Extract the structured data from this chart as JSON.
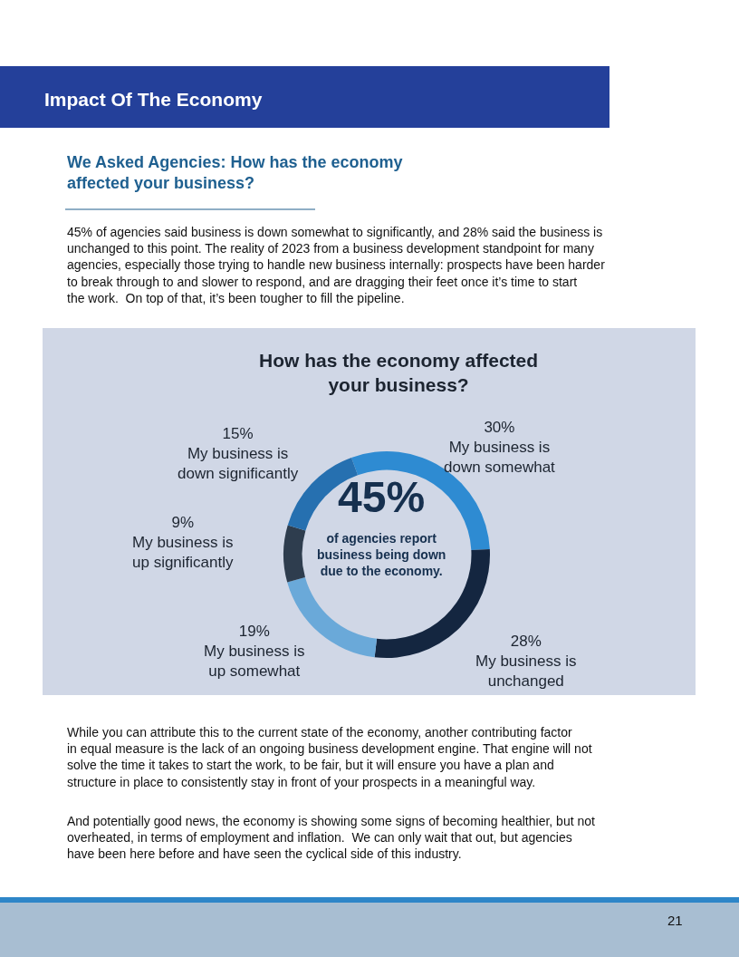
{
  "chart_data": {
    "type": "donut",
    "title": "How has the economy affected your business?",
    "categories": [
      "My business is down somewhat",
      "My business is unchanged",
      "My business is up somewhat",
      "My business is up significantly",
      "My business is down significantly"
    ],
    "values": [
      30,
      28,
      19,
      9,
      15
    ],
    "value_labels": [
      "30%",
      "28%",
      "19%",
      "9%",
      "15%"
    ],
    "colors": [
      "#2e8bd2",
      "#142640",
      "#6aa9d9",
      "#2e3d4e",
      "#2670b0"
    ],
    "annotations": [
      "Impact Of The Economy",
      "We Asked Agencies: How has the economy affected your business?",
      "45% of agencies said business is down somewhat to significantly, and 28% said the business is unchanged to this point. The reality of 2023 from a business development standpoint for many agencies, especially those trying to handle new business internally: prospects have been harder to break through to and slower to respond, and are dragging their feet once it’s time to start the work.  On top of that, it’s been tougher to fill the pipeline.",
      "45%",
      "of agencies report business being down due to the economy.",
      "While you can attribute this to the current state of the economy, another contributing factor in equal measure is the lack of an ongoing business development engine. That engine will not solve the time it takes to start the work, to be fair, but it will ensure you have a plan and structure in place to consistently stay in front of your prospects in a meaningful way.",
      "And potentially good news, the economy is showing some signs of becoming healthier, but not overheated, in terms of employment and inflation.  We can only wait that out, but agencies have been here before and have seen the cyclical side of this industry.",
      "21"
    ]
  }
}
